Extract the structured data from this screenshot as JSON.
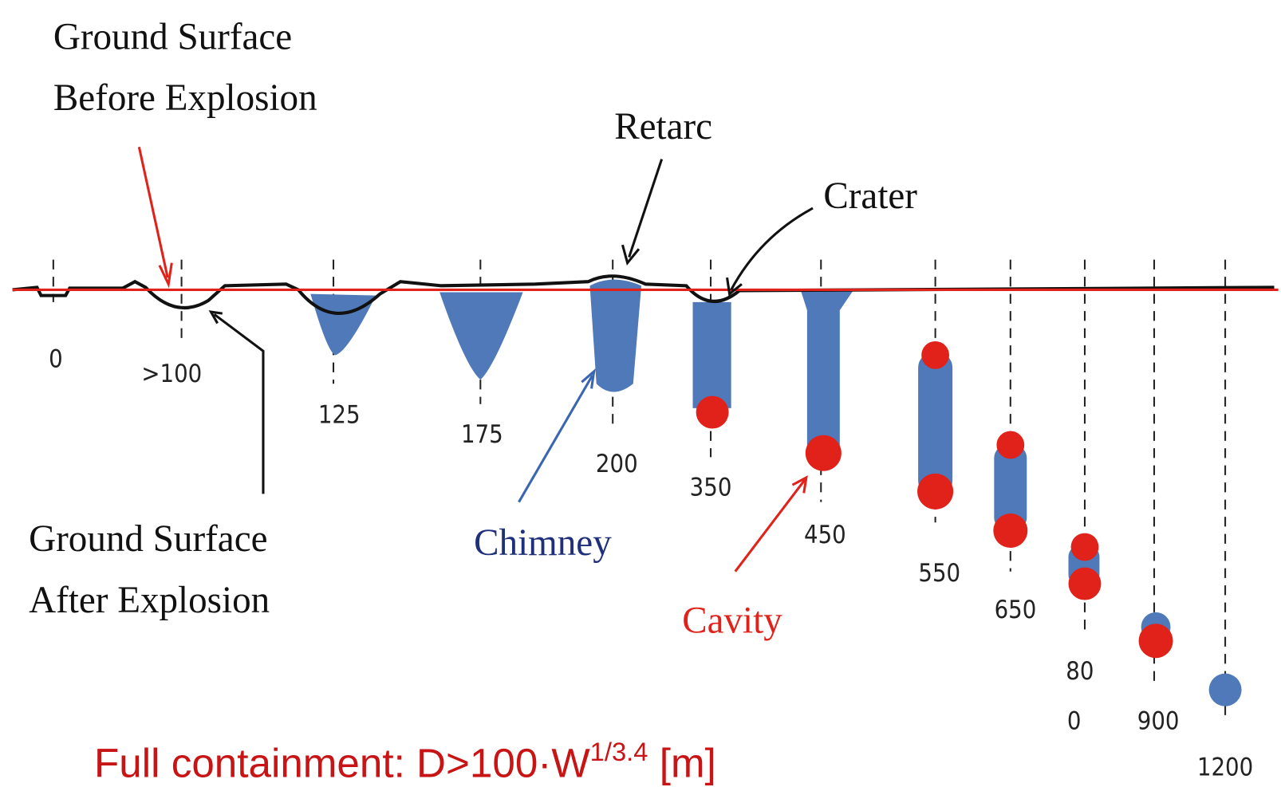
{
  "labels": {
    "before": [
      "Ground Surface",
      "Before Explosion"
    ],
    "after": [
      "Ground Surface",
      "After Explosion"
    ],
    "retarc": "Retarc",
    "crater": "Crater",
    "chimney": "Chimney",
    "cavity": "Cavity"
  },
  "depths": [
    "0",
    ">100",
    "125",
    "175",
    "200",
    "350",
    "450",
    "550",
    "650",
    "80",
    "0",
    "900",
    "1200"
  ],
  "formula": {
    "main": "Full containment: D>100·W",
    "sup": "1/3.4",
    "unit": " [m]"
  }
}
